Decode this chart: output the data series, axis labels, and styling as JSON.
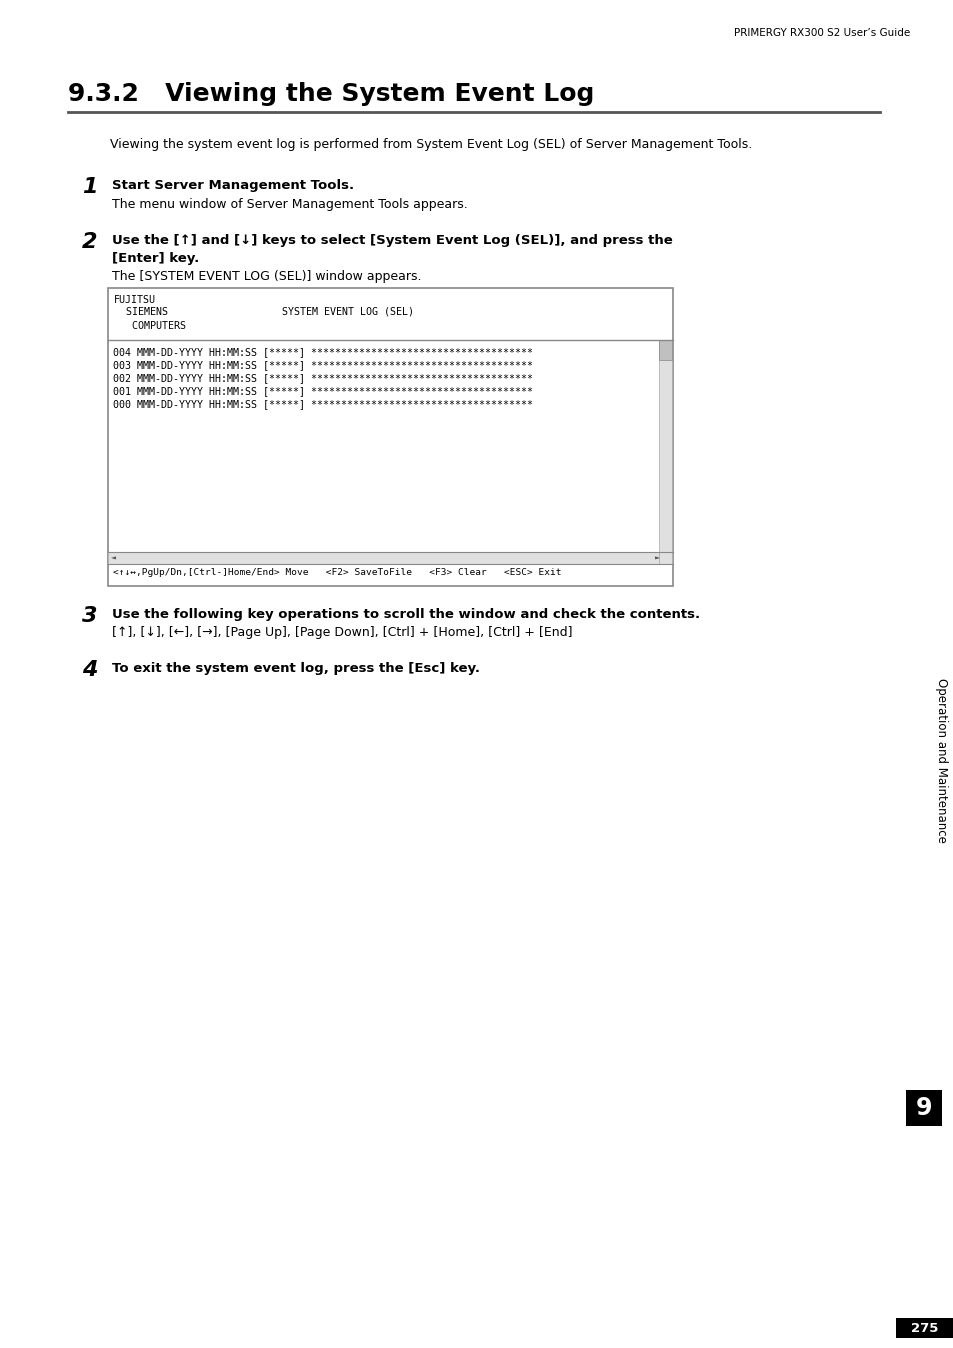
{
  "page_bg": "#ffffff",
  "header_text": "PRIMERGY RX300 S2 User’s Guide",
  "title": "9.3.2   Viewing the System Event Log",
  "intro": "Viewing the system event log is performed from System Event Log (SEL) of Server Management Tools.",
  "step1_num": "1",
  "step1_main": "Start Server Management Tools.",
  "step1_sub": "The menu window of Server Management Tools appears.",
  "step2_num": "2",
  "step2_main1": "Use the [↑] and [↓] keys to select [System Event Log (SEL)], and press the",
  "step2_main2": "[Enter] key.",
  "step2_sub": "The [SYSTEM EVENT LOG (SEL)] window appears.",
  "term_h1": "FUJITSU",
  "term_h2": "  SIEMENS                   SYSTEM EVENT LOG (SEL)",
  "term_h3": "   COMPUTERS",
  "term_log": [
    "004 MMM-DD-YYYY HH:MM:SS [*****] *************************************",
    "003 MMM-DD-YYYY HH:MM:SS [*****] *************************************",
    "002 MMM-DD-YYYY HH:MM:SS [*****] *************************************",
    "001 MMM-DD-YYYY HH:MM:SS [*****] *************************************",
    "000 MMM-DD-YYYY HH:MM:SS [*****] *************************************"
  ],
  "term_status": "<↑↓↔,PgUp/Dn,[Ctrl-]Home/End> Move   <F2> SaveToFile   <F3> Clear   <ESC> Exit",
  "step3_num": "3",
  "step3_main": "Use the following key operations to scroll the window and check the contents.",
  "step3_sub": "[↑], [↓], [←], [→], [Page Up], [Page Down], [Ctrl] + [Home], [Ctrl] + [End]",
  "step4_num": "4",
  "step4_main": "To exit the system event log, press the [Esc] key.",
  "sidebar_text": "Operation and Maintenance",
  "sidebar_num": "9",
  "page_num": "275"
}
